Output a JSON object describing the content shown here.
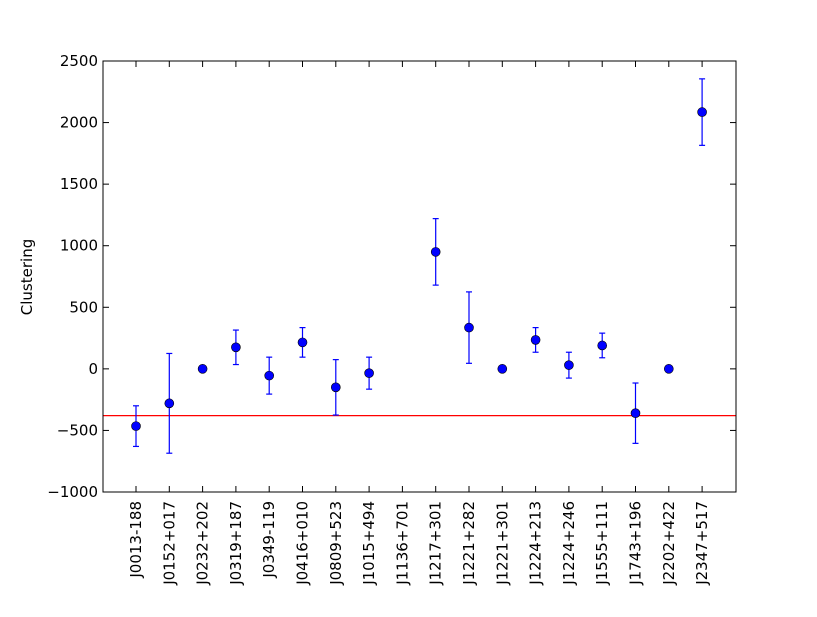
{
  "chart_data": {
    "type": "scatter",
    "title": "",
    "xlabel": "",
    "ylabel": "Clustering",
    "ylim": [
      -1000,
      2500
    ],
    "yticks": [
      -1000,
      -500,
      0,
      500,
      1000,
      1500,
      2000,
      2500
    ],
    "ytick_labels": [
      "−1000",
      "−500",
      "0",
      "500",
      "1000",
      "1500",
      "2000",
      "2500"
    ],
    "grid": false,
    "legend": "none",
    "categories": [
      "J0013-188",
      "J0152+017",
      "J0232+202",
      "J0319+187",
      "J0349-119",
      "J0416+010",
      "J0809+523",
      "J1015+494",
      "J1136+701",
      "J1217+301",
      "J1221+282",
      "J1221+301",
      "J1224+213",
      "J1224+246",
      "J1555+111",
      "J1743+196",
      "J2202+422",
      "J2347+517"
    ],
    "values": [
      -465,
      -280,
      0,
      175,
      -55,
      215,
      -150,
      -35,
      null,
      950,
      335,
      0,
      235,
      30,
      190,
      -360,
      0,
      2085
    ],
    "errors": [
      165,
      405,
      0,
      140,
      150,
      120,
      225,
      130,
      null,
      270,
      290,
      0,
      100,
      105,
      100,
      245,
      0,
      270
    ],
    "reference_line": -380,
    "colors": {
      "points": "#0000ff",
      "errorbars": "#0000ff",
      "reference_line": "#ff0000",
      "axes": "#000000",
      "background": "#ffffff"
    }
  }
}
